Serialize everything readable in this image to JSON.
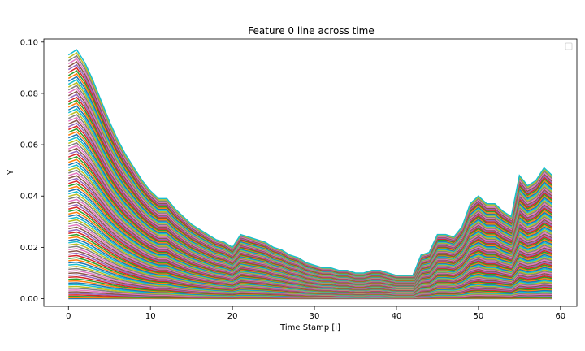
{
  "chart_data": {
    "type": "line",
    "title": "Feature 0 line across time",
    "xlabel": "Time Stamp [i]",
    "ylabel": "Y",
    "xlim": [
      -3,
      62
    ],
    "ylim": [
      -0.003,
      0.1012
    ],
    "xticks": [
      0,
      10,
      20,
      30,
      40,
      50,
      60
    ],
    "xtick_labels": [
      "0",
      "10",
      "20",
      "30",
      "40",
      "50",
      "60"
    ],
    "yticks": [
      0.0,
      0.02,
      0.04,
      0.06,
      0.08,
      0.1
    ],
    "ytick_labels": [
      "0.00",
      "0.02",
      "0.04",
      "0.06",
      "0.08",
      "0.10"
    ],
    "grid": false,
    "legend": "empty box, top-right",
    "series_count": 100,
    "palette": [
      "#1f77b4",
      "#ff7f0e",
      "#2ca02c",
      "#d62728",
      "#9467bd",
      "#8c564b",
      "#e377c2",
      "#7f7f7f",
      "#bcbd22",
      "#17becf"
    ],
    "x": [
      0,
      1,
      2,
      3,
      4,
      5,
      6,
      7,
      8,
      9,
      10,
      11,
      12,
      13,
      14,
      15,
      16,
      17,
      18,
      19,
      20,
      21,
      22,
      23,
      24,
      25,
      26,
      27,
      28,
      29,
      30,
      31,
      32,
      33,
      34,
      35,
      36,
      37,
      38,
      39,
      40,
      41,
      42,
      43,
      44,
      45,
      46,
      47,
      48,
      49,
      50,
      51,
      52,
      53,
      54,
      55,
      56,
      57,
      58,
      59
    ],
    "top_series_values": [
      0.095,
      0.097,
      0.092,
      0.085,
      0.077,
      0.069,
      0.062,
      0.056,
      0.051,
      0.046,
      0.042,
      0.039,
      0.039,
      0.035,
      0.032,
      0.029,
      0.027,
      0.025,
      0.023,
      0.022,
      0.02,
      0.025,
      0.024,
      0.023,
      0.022,
      0.02,
      0.019,
      0.017,
      0.016,
      0.014,
      0.013,
      0.012,
      0.012,
      0.011,
      0.011,
      0.01,
      0.01,
      0.011,
      0.011,
      0.01,
      0.009,
      0.009,
      0.009,
      0.017,
      0.018,
      0.025,
      0.025,
      0.024,
      0.028,
      0.037,
      0.04,
      0.037,
      0.037,
      0.034,
      0.032,
      0.048,
      0.044,
      0.046,
      0.051,
      0.048
    ],
    "bottom_series_values": [
      0.0,
      0.0,
      0.0,
      0.0,
      0.0,
      0.0,
      0.0,
      0.0,
      0.0,
      0.0,
      0.0,
      0.0,
      0.0,
      0.0,
      0.0,
      0.0,
      0.0,
      0.0,
      0.0,
      0.0,
      0.0,
      0.0,
      0.0,
      0.0,
      0.0,
      0.0,
      0.0,
      0.0,
      0.0,
      0.0,
      0.0,
      0.0,
      0.0,
      0.0,
      0.0,
      0.0,
      0.0,
      0.0,
      0.0,
      0.0,
      0.0,
      0.0,
      0.0,
      0.0,
      0.0,
      0.0,
      0.0,
      0.0,
      0.0,
      0.0,
      0.0,
      0.0,
      0.0,
      0.0,
      0.0,
      0.0,
      0.0,
      0.0,
      0.0,
      0.0
    ]
  }
}
